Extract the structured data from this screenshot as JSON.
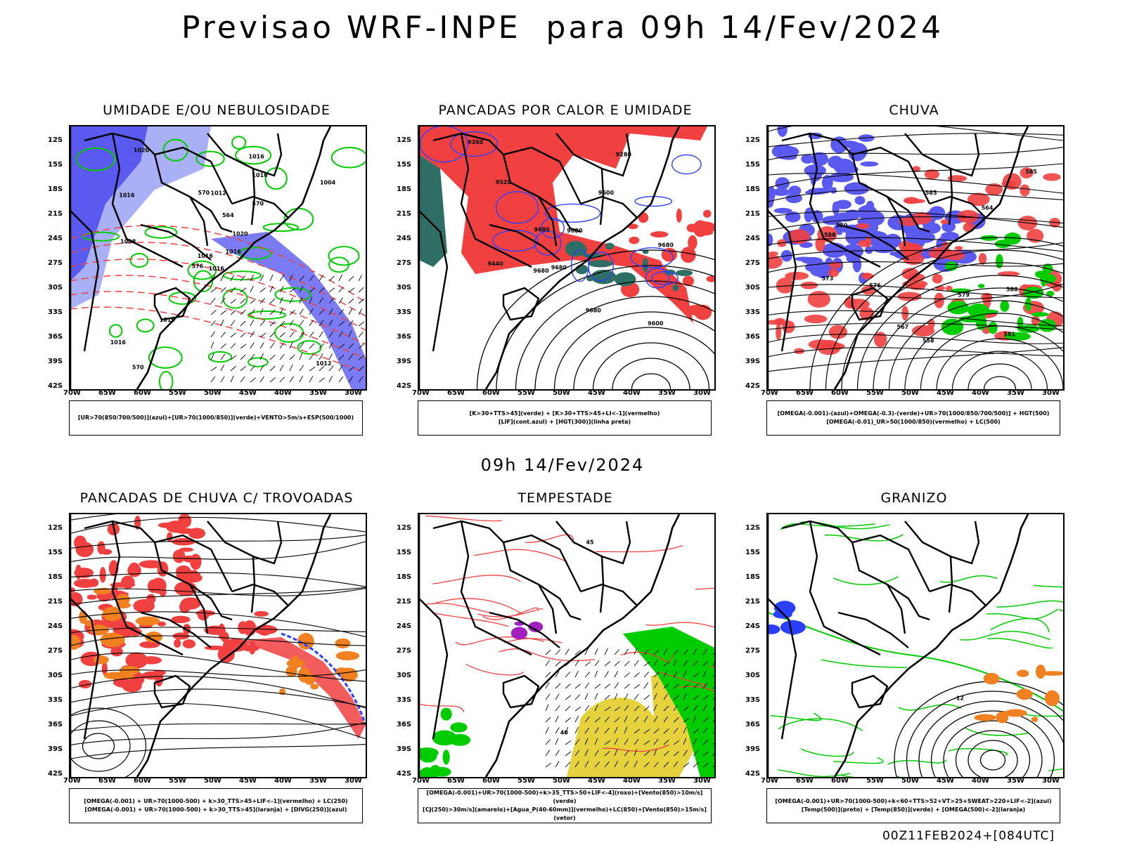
{
  "header": {
    "title": "Previsao WRF-INPE  para 09h 14/Fev/2024",
    "mid_time": "09h 14/Fev/2024",
    "footer": "00Z11FEB2024+[084UTC]"
  },
  "axes": {
    "lat_labels": [
      "12S",
      "15S",
      "18S",
      "21S",
      "24S",
      "27S",
      "30S",
      "33S",
      "36S",
      "39S",
      "42S"
    ],
    "lon_labels": [
      "70W",
      "65W",
      "60W",
      "55W",
      "50W",
      "45W",
      "40W",
      "35W",
      "30W"
    ]
  },
  "panels": [
    {
      "title": "UMIDADE E/OU NEBULOSIDADE",
      "legend": [
        "[UR>70(850/700/500)](azul)+[UR>70(1000/850)](verde)+VENTO>5m/s+ESP(500/1000)"
      ],
      "contour_labels": [
        "1016",
        "1016",
        "1016",
        "1016",
        "1020",
        "1016",
        "1016",
        "1012",
        "1016",
        "1016",
        "1020",
        "1012",
        "1008",
        "1004",
        "576",
        "570",
        "570",
        "570",
        "564"
      ]
    },
    {
      "title": "PANCADAS POR CALOR E UMIDADE",
      "legend": [
        "[K>30+TTS>45](verde) + [K>30+TTS>45+LI<-1](vermelho)",
        "[LIF](cont.azul) + [HGT(300)](linha preta)"
      ],
      "contour_labels": [
        "9680",
        "9680",
        "9680",
        "9680",
        "9680",
        "9600",
        "9520",
        "9440",
        "9360",
        "9280",
        "9600",
        "9680"
      ]
    },
    {
      "title": "CHUVA",
      "legend": [
        "[OMEGA(-0.001)-(azul)+OMEGA(-0.3)-(verde)+UR>70(1000/850/700/500)] + HGT(500)",
        "[OMEGA(-0.01)_UR>50(1000/850)(vermelho) + LC(500)"
      ],
      "contour_labels": [
        "585",
        "579",
        "576",
        "573",
        "570",
        "567",
        "564",
        "561",
        "558",
        "588",
        "588",
        "585"
      ]
    },
    {
      "title": "PANCADAS DE CHUVA C/ TROVOADAS",
      "legend": [
        "[OMEGA(-0.001) + UR>70(1000-500) + k>30_TTS>45+LIF<-1](vermelho) + LC(250)",
        "[OMEGA(-0.001) + UR>70(1000-500) + k>30_TTS>45](laranja) + [DIVG(250)](azul)"
      ],
      "contour_labels": []
    },
    {
      "title": "TEMPESTADE",
      "legend": [
        "[OMEGA(-0.001)+UR>70(1000-500)+k>35_TTS>50+LIF<-4](roxo)+[Vento(850)>10m/s](verde)",
        "[CJ(250)>30m/s](amarelo)+[Agua_P(40-60mm)](vermelho)+LC(850)+[Vento(850)>15m/s](vetor)"
      ],
      "contour_labels": [
        "45",
        "40"
      ]
    },
    {
      "title": "GRANIZO",
      "legend": [
        "[OMEGA(-0.001)+UR>70(1000-500)+k<60+TTS>52+VT>25+SWEAT>220+LIF<-2](azul)",
        "[Temp(500)](preto) + [Temp(850)](verde) + [OMEGA(500)<-2](laranja)"
      ],
      "contour_labels": [
        "-12"
      ]
    }
  ],
  "colors": {
    "blue_fill": "#5a5af0",
    "light_blue": "#aab0f5",
    "green": "#00cc00",
    "red": "#f04040",
    "dark_teal": "#2e6e64",
    "orange": "#f08020",
    "yellow": "#e6d23c",
    "purple": "#a020c0"
  }
}
